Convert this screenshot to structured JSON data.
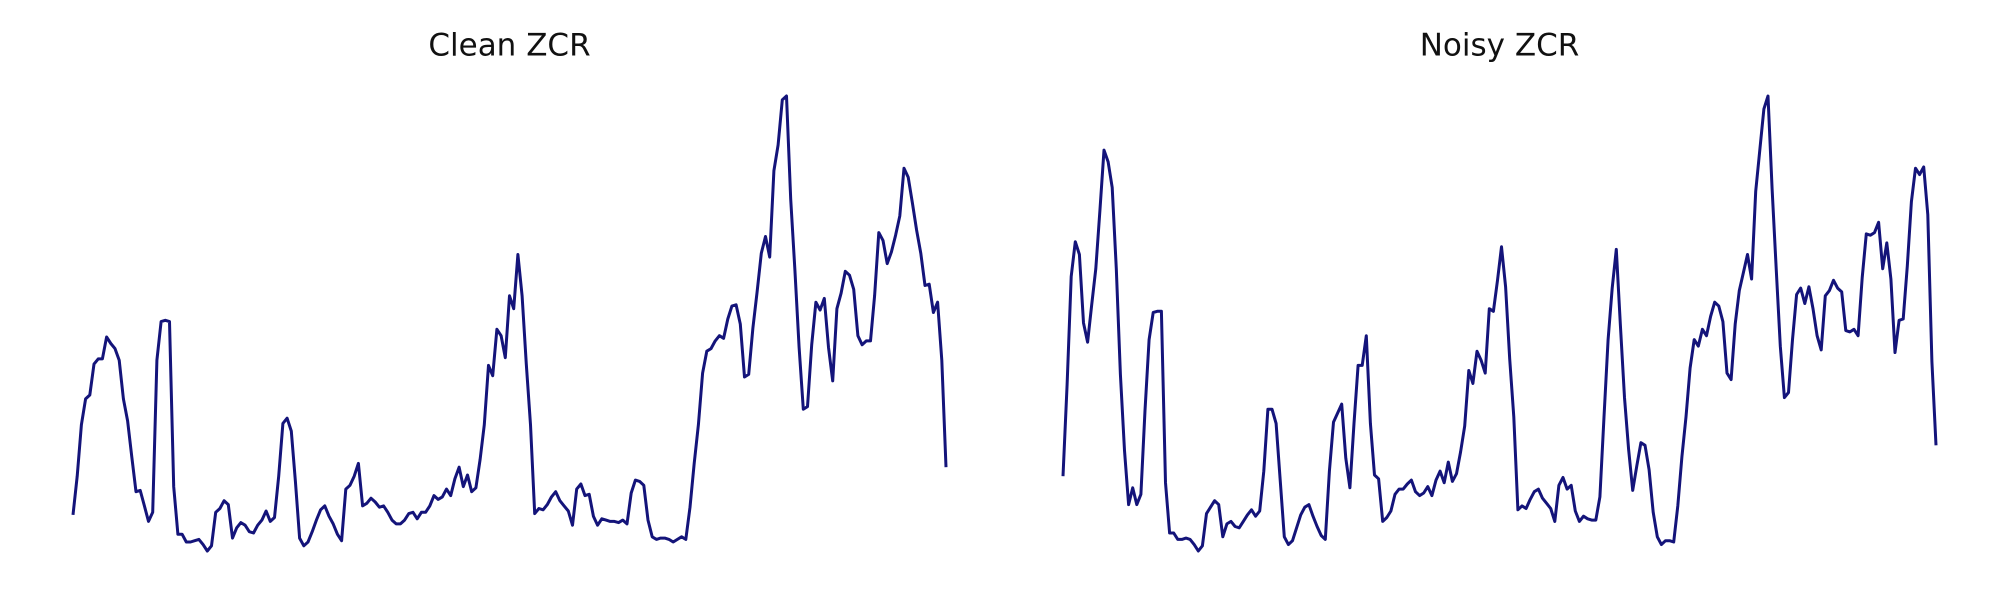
{
  "chart_data": [
    {
      "type": "line",
      "title": "Clean ZCR",
      "color": "#14147a",
      "values": [
        30,
        60,
        100,
        120,
        123,
        147,
        151,
        151,
        168,
        163,
        159,
        150,
        120,
        103,
        75,
        48,
        49,
        37,
        25,
        32,
        150,
        180,
        181,
        180,
        52,
        15,
        15,
        9,
        9,
        10,
        11,
        7,
        2,
        6,
        32,
        35,
        41,
        38,
        12,
        20,
        24,
        22,
        17,
        16,
        22,
        26,
        33,
        25,
        28,
        60,
        101,
        105,
        95,
        56,
        12,
        6,
        9,
        17,
        26,
        34,
        37,
        29,
        23,
        15,
        10,
        50,
        53,
        60,
        70,
        37,
        39,
        43,
        40,
        36,
        37,
        32,
        26,
        23,
        23,
        26,
        31,
        32,
        27,
        32,
        32,
        37,
        45,
        42,
        44,
        50,
        45,
        58,
        67,
        52,
        61,
        48,
        51,
        73,
        100,
        146,
        138,
        174,
        169,
        152,
        200,
        190,
        232,
        200,
        147,
        100,
        31,
        35,
        34,
        38,
        44,
        48,
        41,
        37,
        33,
        22,
        50,
        54,
        45,
        46,
        29,
        22,
        27,
        26,
        25,
        25,
        24,
        26,
        23,
        47,
        57,
        56,
        53,
        26,
        13,
        11,
        12,
        12,
        11,
        9,
        11,
        13,
        11,
        36,
        70,
        100,
        140,
        157,
        159,
        165,
        169,
        167,
        182,
        192,
        193,
        178,
        137,
        139,
        175,
        203,
        233,
        246,
        230,
        297,
        317,
        352,
        355,
        275,
        220,
        160,
        112,
        114,
        162,
        195,
        189,
        198,
        160,
        134,
        190,
        202,
        219,
        216,
        205,
        169,
        162,
        165,
        165,
        200,
        249,
        243,
        225,
        234,
        247,
        262,
        299,
        292,
        272,
        251,
        233,
        208,
        209,
        187,
        195,
        150,
        67
      ]
    },
    {
      "type": "line",
      "title": "Noisy ZCR",
      "color": "#14147a",
      "values": [
        59,
        130,
        214,
        241,
        231,
        178,
        163,
        192,
        220,
        265,
        312,
        303,
        283,
        220,
        138,
        79,
        37,
        50,
        37,
        45,
        110,
        165,
        186,
        187,
        187,
        54,
        15,
        15,
        10,
        10,
        11,
        10,
        6,
        1,
        5,
        30,
        35,
        40,
        37,
        12,
        22,
        24,
        20,
        19,
        24,
        29,
        33,
        28,
        32,
        63,
        111,
        111,
        100,
        56,
        12,
        6,
        9,
        19,
        29,
        35,
        37,
        28,
        20,
        13,
        10,
        63,
        101,
        108,
        115,
        73,
        50,
        100,
        145,
        145,
        168,
        100,
        60,
        57,
        24,
        27,
        32,
        45,
        49,
        49,
        53,
        56,
        47,
        44,
        46,
        51,
        44,
        56,
        63,
        54,
        70,
        55,
        61,
        78,
        98,
        141,
        131,
        156,
        149,
        139,
        189,
        187,
        211,
        237,
        206,
        150,
        105,
        33,
        36,
        34,
        41,
        47,
        49,
        42,
        38,
        34,
        24,
        52,
        58,
        49,
        52,
        32,
        24,
        28,
        26,
        25,
        25,
        43,
        105,
        165,
        205,
        235,
        176,
        120,
        80,
        48,
        67,
        85,
        83,
        64,
        31,
        12,
        6,
        9,
        9,
        8,
        36,
        74,
        105,
        143,
        165,
        160,
        173,
        168,
        183,
        194,
        191,
        179,
        139,
        134,
        177,
        203,
        217,
        231,
        212,
        280,
        312,
        344,
        354,
        282,
        220,
        160,
        120,
        124,
        165,
        200,
        205,
        193,
        206,
        189,
        168,
        157,
        199,
        203,
        211,
        205,
        202,
        172,
        171,
        173,
        168,
        213,
        247,
        246,
        248,
        256,
        220,
        240,
        212,
        155,
        180,
        181,
        222,
        272,
        298,
        293,
        299,
        262,
        148,
        83
      ]
    }
  ]
}
